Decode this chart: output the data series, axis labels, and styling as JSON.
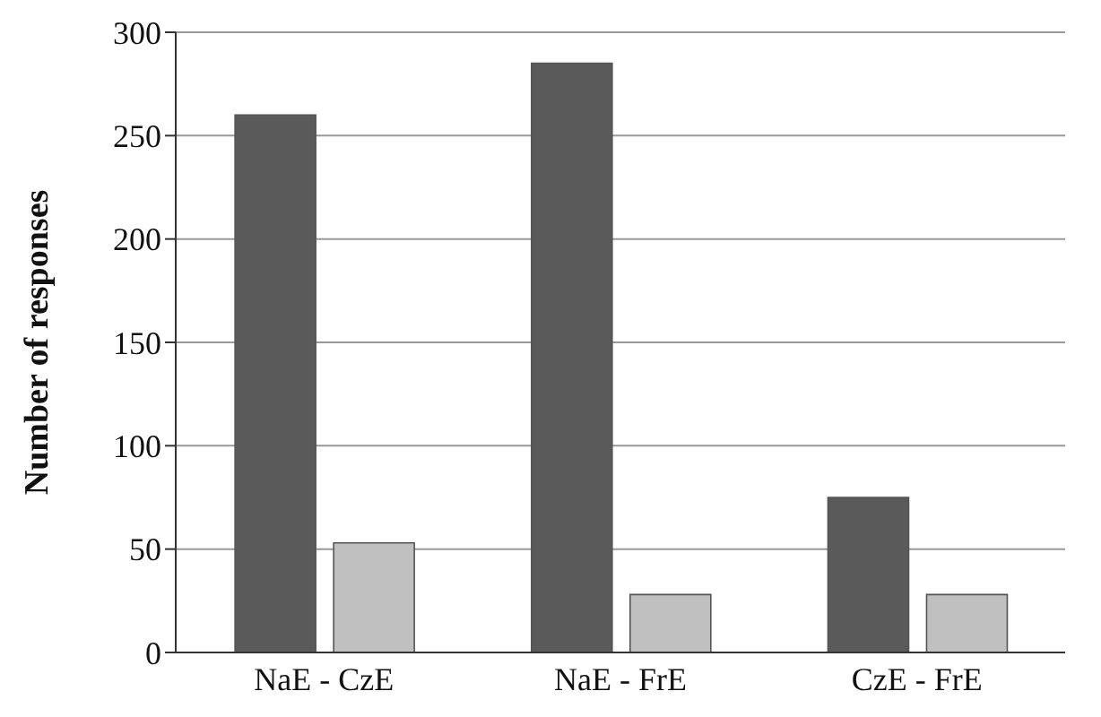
{
  "chart_data": {
    "type": "bar",
    "ylabel": "Number of responses",
    "categories": [
      "NaE - CzE",
      "NaE - FrE",
      "CzE - FrE"
    ],
    "series": [
      {
        "color": "#5a5a5a",
        "values": [
          260,
          285,
          75
        ]
      },
      {
        "color": "#c0c0c0",
        "values": [
          53,
          28,
          28
        ]
      }
    ],
    "ylim": [
      0,
      300
    ],
    "yticks": [
      0,
      50,
      100,
      150,
      200,
      250,
      300
    ],
    "grid": "y"
  }
}
